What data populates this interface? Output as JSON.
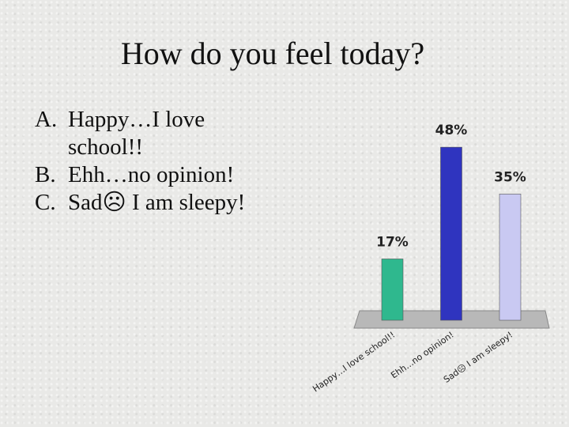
{
  "chart_data": {
    "type": "bar",
    "title": "How do you feel today?",
    "categories": [
      "Happy…I love school!!",
      "Ehh…no opinion!",
      "Sad☹ I am sleepy!"
    ],
    "values": [
      17,
      48,
      35
    ],
    "value_labels": [
      "17%",
      "48%",
      "35%"
    ],
    "colors": [
      "#2fb88e",
      "#2f34bf",
      "#c9c9f2"
    ]
  },
  "options": [
    {
      "letter": "A.",
      "text": "Happy…I love school!!"
    },
    {
      "letter": "B.",
      "text": "Ehh…no opinion!"
    },
    {
      "letter": "C.",
      "text": "Sad☹ I am sleepy!"
    }
  ]
}
